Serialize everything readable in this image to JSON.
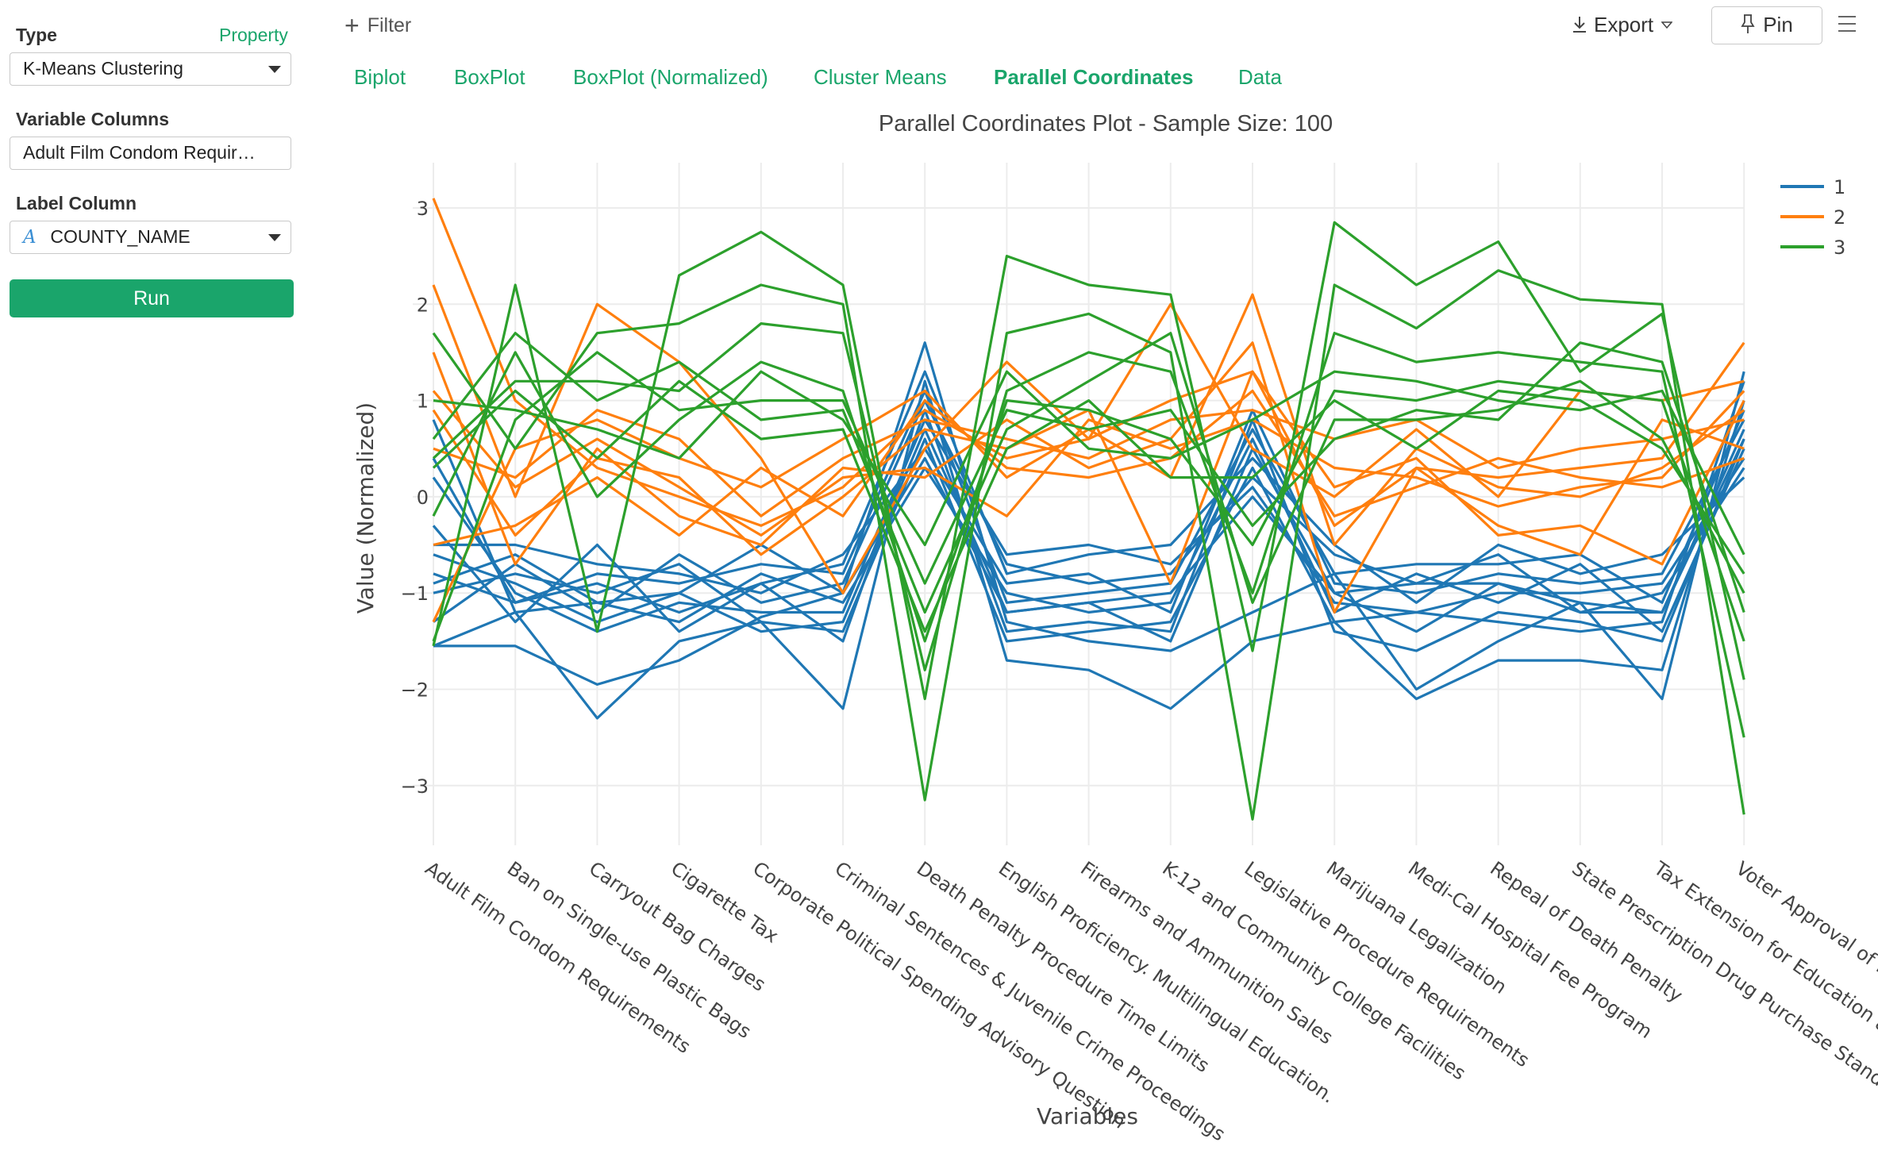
{
  "sidebar": {
    "type_label": "Type",
    "property_link": "Property",
    "type_value": "K-Means Clustering",
    "variable_columns_label": "Variable Columns",
    "variable_columns_value": "Adult Film Condom Requir…",
    "label_column_label": "Label Column",
    "label_column_type_icon": "A",
    "label_column_value": "COUNTY_NAME",
    "run_label": "Run"
  },
  "toolbar": {
    "filter_label": "Filter",
    "export_label": "Export",
    "pin_label": "Pin",
    "icons": [
      "plus-icon",
      "download-icon",
      "caret-down-icon",
      "pin-icon",
      "hamburger-menu-icon"
    ]
  },
  "tabs": [
    {
      "label": "Biplot",
      "active": false
    },
    {
      "label": "BoxPlot",
      "active": false
    },
    {
      "label": "BoxPlot (Normalized)",
      "active": false
    },
    {
      "label": "Cluster Means",
      "active": false
    },
    {
      "label": "Parallel Coordinates",
      "active": true
    },
    {
      "label": "Data",
      "active": false
    }
  ],
  "colors": {
    "accent": "#1aa56b",
    "cluster_1": "#1f77b4",
    "cluster_2": "#ff7f0e",
    "cluster_3": "#2ca02c",
    "grid": "#ececec"
  },
  "chart_data": {
    "type": "line",
    "title": "Parallel Coordinates Plot - Sample Size: 100",
    "xlabel": "Variables",
    "ylabel": "Value (Normalized)",
    "ylim": [
      -3.6,
      3.3
    ],
    "yticks": [
      3,
      2,
      1,
      0,
      -1,
      -2,
      -3
    ],
    "ytick_labels": [
      "3",
      "2",
      "1",
      "0",
      "−1",
      "−2",
      "−3"
    ],
    "grid": true,
    "legend_position": "top-right",
    "categories": [
      "Adult Film Condom Requirements",
      "Ban on Single-use Plastic Bags",
      "Carryout Bag Charges",
      "Cigarette Tax",
      "Corporate Political Spending Advisory Question",
      "Criminal Sentences & Juvenile Crime Proceedings",
      "Death Penalty Procedure Time Limits",
      "English Proficiency. Multilingual Education.",
      "Firearms and Ammunition Sales",
      "K-12 and Community College Facilities",
      "Legislative Procedure Requirements",
      "Marijuana Legalization",
      "Medi-Cal Hospital Fee Program",
      "Repeal of Death Penalty",
      "State Prescription Drug Purchase Standards",
      "Tax Extension for Education and Healthcare",
      "Voter Approval of Revenue Bonds"
    ],
    "clusters": [
      {
        "name": "1",
        "color": "#1f77b4",
        "lines": [
          [
            -1.55,
            -1.55,
            -1.95,
            -1.7,
            -1.25,
            -1.0,
            1.6,
            -1.3,
            -1.5,
            -1.6,
            -1.2,
            -0.8,
            -2.0,
            -1.5,
            -1.1,
            -2.1,
            1.3
          ],
          [
            -1.55,
            -1.2,
            -2.3,
            -1.5,
            -1.3,
            -2.2,
            1.2,
            -1.7,
            -1.8,
            -2.2,
            -1.5,
            -1.3,
            -2.1,
            -1.7,
            -1.7,
            -1.8,
            1.0
          ],
          [
            0.4,
            -1.1,
            -0.9,
            -1.2,
            -0.9,
            -1.5,
            0.9,
            -1.4,
            -1.3,
            -1.4,
            0.8,
            -1.4,
            -1.6,
            -1.2,
            -1.3,
            -1.5,
            0.6
          ],
          [
            -0.6,
            -0.9,
            -1.3,
            -1.0,
            -1.4,
            -1.3,
            0.7,
            -1.2,
            -1.1,
            -1.5,
            0.5,
            -1.0,
            -1.4,
            -0.9,
            -1.1,
            -1.2,
            0.7
          ],
          [
            -1.3,
            -0.7,
            -1.2,
            -0.6,
            -1.1,
            -0.9,
            1.0,
            -0.7,
            -0.9,
            -0.8,
            0.2,
            -0.6,
            -0.9,
            -0.6,
            -1.2,
            -1.0,
            0.3
          ],
          [
            0.8,
            -1.2,
            -1.1,
            -1.3,
            -0.8,
            -1.1,
            0.3,
            -1.0,
            -1.2,
            -1.1,
            0.6,
            -1.2,
            -0.8,
            -1.1,
            -0.7,
            -1.4,
            0.5
          ],
          [
            -0.5,
            -0.5,
            -0.7,
            -0.8,
            -1.0,
            -0.6,
            0.5,
            -0.9,
            -0.8,
            -1.2,
            0.9,
            -0.9,
            -1.0,
            -0.8,
            -0.9,
            -0.8,
            0.8
          ],
          [
            0.2,
            -1.0,
            -1.4,
            -1.1,
            -1.2,
            -1.2,
            0.8,
            -0.6,
            -0.5,
            -0.7,
            0.1,
            -1.1,
            -1.2,
            -1.0,
            -1.0,
            -0.9,
            0.4
          ],
          [
            -0.8,
            -1.1,
            -0.8,
            -0.9,
            -0.7,
            -0.8,
            1.1,
            -1.1,
            -1.0,
            -0.9,
            0.7,
            -0.8,
            -0.7,
            -0.7,
            -0.6,
            -1.1,
            0.9
          ],
          [
            -1.0,
            -0.8,
            -1.0,
            -0.7,
            -1.3,
            -1.4,
            0.6,
            -1.5,
            -1.4,
            -1.3,
            0.3,
            -1.3,
            -1.2,
            -1.3,
            -1.4,
            -1.3,
            1.2
          ],
          [
            -0.3,
            -1.3,
            -0.5,
            -1.4,
            -0.9,
            -0.7,
            1.3,
            -0.8,
            -0.6,
            -0.5,
            0.4,
            -0.5,
            -1.1,
            -0.5,
            -0.8,
            -0.6,
            0.2
          ],
          [
            -0.9,
            -0.6,
            -1.1,
            -1.0,
            -0.5,
            -1.0,
            0.4,
            -1.2,
            -1.1,
            -1.0,
            0.0,
            -1.0,
            -0.9,
            -0.9,
            -1.2,
            -1.2,
            0.6
          ]
        ]
      },
      {
        "name": "2",
        "color": "#ff7f0e",
        "lines": [
          [
            3.1,
            1.0,
            0.3,
            0.0,
            -0.3,
            0.1,
            0.9,
            0.4,
            0.6,
            1.0,
            1.3,
            -0.3,
            0.3,
            0.2,
            0.3,
            0.4,
            1.6
          ],
          [
            2.2,
            0.0,
            2.0,
            1.4,
            0.4,
            -1.0,
            0.5,
            1.4,
            0.6,
            2.0,
            0.5,
            0.0,
            0.7,
            0.0,
            1.1,
            1.0,
            1.2
          ],
          [
            1.5,
            -0.7,
            0.5,
            -0.2,
            -0.5,
            0.3,
            0.2,
            0.8,
            0.3,
            0.6,
            1.6,
            -1.2,
            0.3,
            -0.3,
            -0.6,
            0.8,
            0.5
          ],
          [
            -1.3,
            0.5,
            0.8,
            0.4,
            0.1,
            0.6,
            1.1,
            0.2,
            0.7,
            0.2,
            2.1,
            -0.5,
            0.5,
            0.1,
            0.0,
            0.3,
            0.9
          ],
          [
            0.9,
            -0.4,
            0.4,
            0.2,
            -0.6,
            0.0,
            0.7,
            0.5,
            0.9,
            -0.9,
            1.3,
            0.1,
            0.4,
            -0.4,
            -0.3,
            -0.7,
            1.0
          ],
          [
            0.5,
            0.2,
            0.9,
            0.6,
            -0.2,
            0.4,
            0.8,
            0.6,
            0.4,
            0.8,
            0.9,
            0.6,
            0.8,
            0.3,
            0.5,
            0.6,
            0.8
          ],
          [
            -0.5,
            -0.3,
            0.2,
            -0.4,
            0.3,
            -0.2,
            1.0,
            0.3,
            0.2,
            0.4,
            1.1,
            -0.2,
            0.1,
            0.4,
            0.2,
            0.1,
            0.4
          ],
          [
            1.1,
            0.1,
            0.6,
            0.1,
            -0.4,
            0.2,
            0.3,
            -0.2,
            0.8,
            0.5,
            0.8,
            0.3,
            0.2,
            -0.1,
            0.1,
            0.2,
            1.1
          ]
        ]
      },
      {
        "name": "3",
        "color": "#2ca02c",
        "lines": [
          [
            -1.55,
            2.2,
            -1.4,
            2.3,
            2.75,
            2.2,
            -2.1,
            2.5,
            2.2,
            2.1,
            -1.6,
            2.85,
            2.2,
            2.65,
            1.3,
            1.9,
            -1.9
          ],
          [
            1.7,
            0.5,
            1.7,
            1.8,
            2.2,
            2.0,
            -3.15,
            1.7,
            1.9,
            1.5,
            -3.35,
            2.2,
            1.75,
            2.35,
            2.05,
            2.0,
            -3.3
          ],
          [
            0.4,
            1.2,
            1.2,
            1.1,
            1.8,
            1.7,
            -1.8,
            1.1,
            1.5,
            1.3,
            -1.0,
            1.7,
            1.4,
            1.5,
            1.4,
            1.3,
            -2.5
          ],
          [
            -0.2,
            1.5,
            0.0,
            0.8,
            1.4,
            1.1,
            -1.5,
            1.0,
            0.9,
            0.6,
            -0.5,
            1.1,
            1.0,
            1.2,
            1.1,
            1.0,
            -1.5
          ],
          [
            0.6,
            1.7,
            1.0,
            1.4,
            0.8,
            0.9,
            -1.2,
            0.7,
            1.2,
            1.7,
            -1.1,
            0.8,
            0.8,
            0.9,
            1.2,
            0.6,
            -1.0
          ],
          [
            1.0,
            0.9,
            0.7,
            0.4,
            1.3,
            0.8,
            -0.5,
            1.3,
            0.5,
            0.4,
            0.8,
            1.3,
            1.2,
            1.0,
            0.9,
            1.1,
            -0.6
          ],
          [
            -1.5,
            0.8,
            1.5,
            0.9,
            1.0,
            1.0,
            -0.9,
            0.9,
            0.7,
            0.9,
            -0.3,
            0.6,
            0.9,
            0.8,
            1.6,
            1.4,
            -1.2
          ],
          [
            0.3,
            1.1,
            0.4,
            1.2,
            0.6,
            0.7,
            -1.4,
            0.5,
            1.0,
            0.2,
            0.2,
            1.0,
            0.5,
            1.1,
            1.0,
            0.5,
            -0.8
          ]
        ]
      }
    ]
  }
}
